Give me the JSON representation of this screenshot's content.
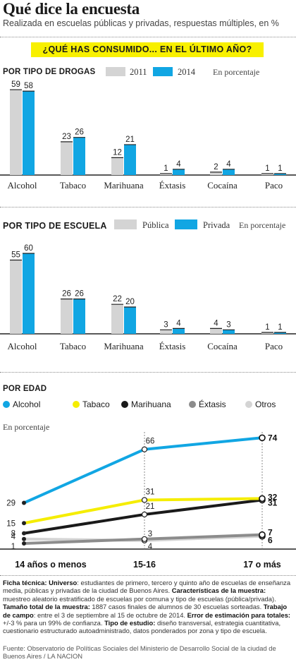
{
  "title": "Qué dice la encuesta",
  "subtitle": "Realizada en escuelas públicas y privadas, respuestas múltiples, en %",
  "question": "¿QUÉ HAS CONSUMIDO... EN EL ÚLTIMO AÑO?",
  "chart_data": [
    {
      "type": "bar",
      "section": "POR TIPO DE DROGAS",
      "note": "En porcentaje",
      "categories": [
        "Alcohol",
        "Tabaco",
        "Marihuana",
        "Éxtasis",
        "Cocaína",
        "Paco"
      ],
      "series": [
        {
          "name": "2011",
          "color": "#d4d4d4",
          "values": [
            59,
            23,
            12,
            1,
            2,
            1
          ]
        },
        {
          "name": "2014",
          "color": "#11a6e3",
          "values": [
            58,
            26,
            21,
            4,
            4,
            1
          ]
        }
      ],
      "ylim": [
        0,
        60
      ]
    },
    {
      "type": "bar",
      "section": "POR TIPO DE ESCUELA",
      "note": "En porcentaje",
      "categories": [
        "Alcohol",
        "Tabaco",
        "Marihuana",
        "Éxtasis",
        "Cocaína",
        "Paco"
      ],
      "series": [
        {
          "name": "Pública",
          "color": "#d4d4d4",
          "values": [
            55,
            26,
            22,
            3,
            4,
            1
          ]
        },
        {
          "name": "Privada",
          "color": "#11a6e3",
          "values": [
            60,
            26,
            20,
            4,
            3,
            1
          ]
        }
      ],
      "ylim": [
        0,
        60
      ]
    },
    {
      "type": "line",
      "section": "POR EDAD",
      "note": "En porcentaje",
      "x": [
        "14 años o menos",
        "15-16",
        "17 o más"
      ],
      "series": [
        {
          "name": "Alcohol",
          "color": "#11a6e3",
          "values": [
            29,
            66,
            74
          ]
        },
        {
          "name": "Tabaco",
          "color": "#f5ed00",
          "values": [
            15,
            31,
            32
          ]
        },
        {
          "name": "Marihuana",
          "color": "#1a1a1a",
          "values": [
            8,
            21,
            31
          ]
        },
        {
          "name": "Éxtasis",
          "color": "#8c8c8c",
          "values": [
            1,
            4,
            7
          ]
        },
        {
          "name": "Otros",
          "color": "#d4d4d4",
          "values": [
            4,
            3,
            6
          ]
        }
      ],
      "ylim": [
        0,
        80
      ]
    }
  ],
  "ficha": [
    {
      "label": "Ficha técnica: ",
      "text": ""
    },
    {
      "label": "Universo",
      "text": ": estudiantes de primero, tercero y quinto año de escuelas de enseñanza media, públicas y privadas de la ciudad de Buenos Aires. "
    },
    {
      "label": "Características de la muestra:",
      "text": " muestreo aleatorio estratificado de escuelas por comuna y tipo de escuelas (pública/privada). "
    },
    {
      "label": "Tamaño total de la muestra:",
      "text": " 1887 casos finales de alumnos de 30 escuelas sorteadas. "
    },
    {
      "label": "Trabajo de campo",
      "text": ": entre el 3 de septiembre al 15 de octubre de 2014. "
    },
    {
      "label": "Error de estimación para totales:",
      "text": " +/-3 % para un 99% de confianza. "
    },
    {
      "label": "Tipo de estudio:",
      "text": " diseño transversal, estrategia cuantitativa, cuestionario estructurado autoadministrado, datos ponderados por zona y tipo de escuela."
    }
  ],
  "source": "Fuente: Observatorio de Políticas Sociales del Ministerio de Desarrollo Social de la ciudad de Buenos Aires / LA NACION"
}
